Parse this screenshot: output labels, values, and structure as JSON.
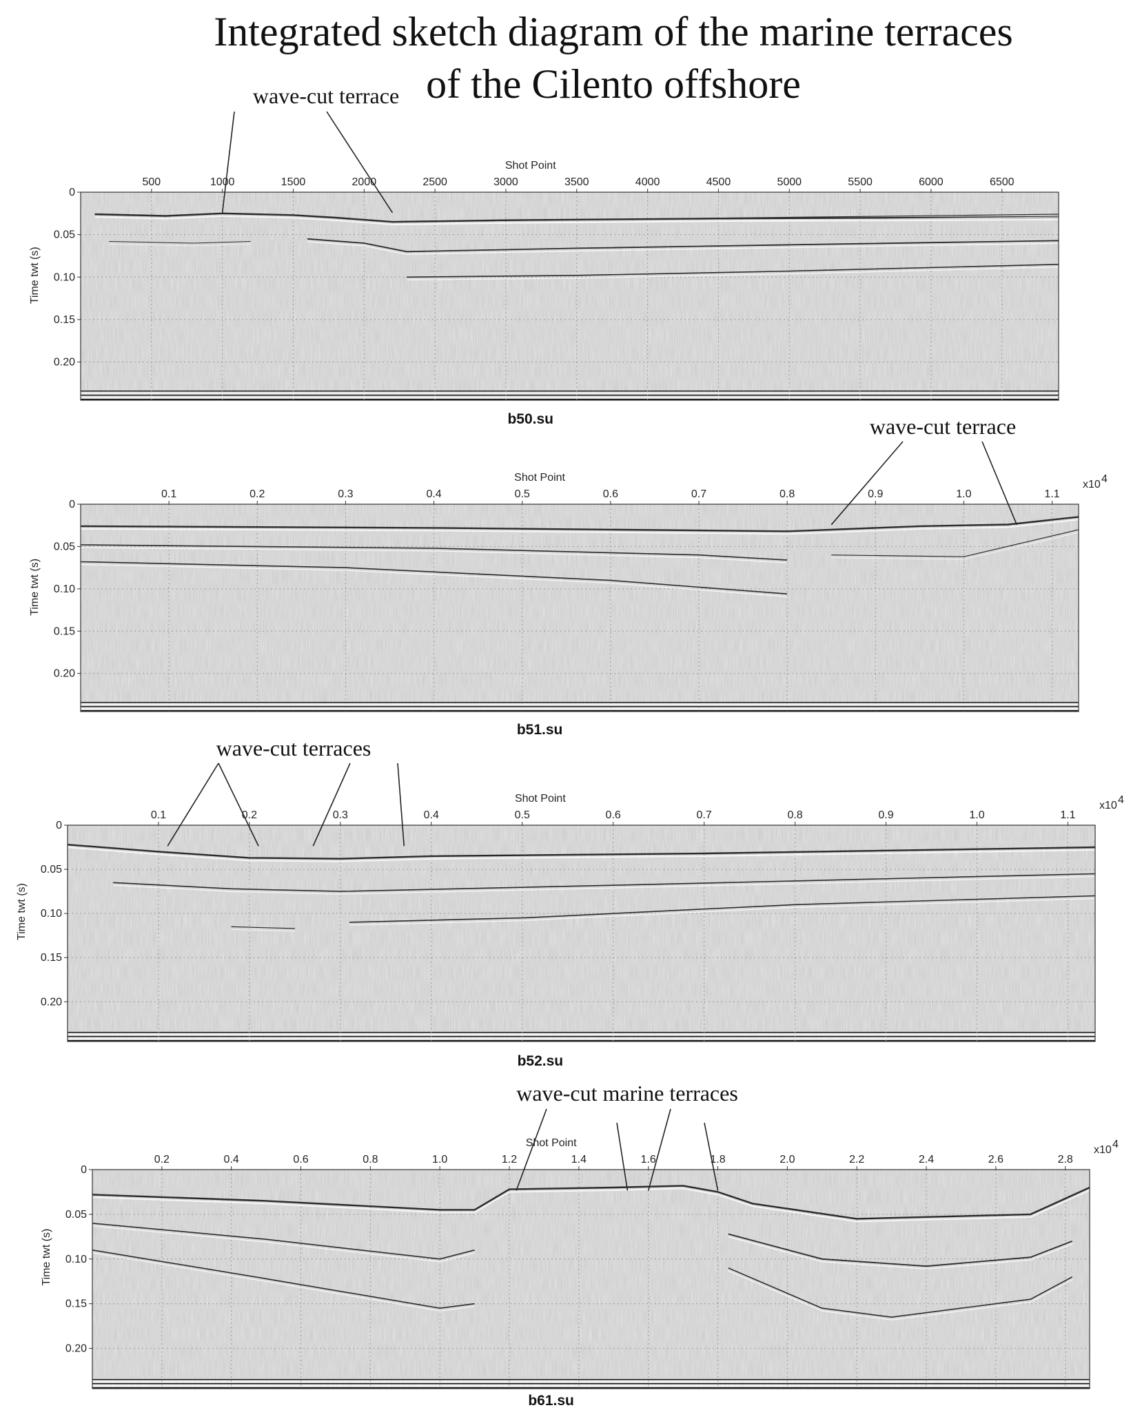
{
  "figure": {
    "title_line1": "Integrated sketch diagram of the marine terraces",
    "title_line2": "of the Cilento offshore"
  },
  "panels": [
    {
      "id": "b50",
      "label": "b50.su",
      "xlabel": "Shot Point",
      "ylabel": "Time twt (s)",
      "multiplier": "",
      "xlim": [
        0,
        6900
      ],
      "xticks": [
        "500",
        "1000",
        "1500",
        "2000",
        "2500",
        "3000",
        "3500",
        "4000",
        "4500",
        "5000",
        "5500",
        "6000",
        "6500"
      ],
      "xtick_values": [
        500,
        1000,
        1500,
        2000,
        2500,
        3000,
        3500,
        4000,
        4500,
        5000,
        5500,
        6000,
        6500
      ],
      "ylim": [
        0,
        0.245
      ],
      "yticks": [
        "0",
        "0.05",
        "0.10",
        "0.15",
        "0.20"
      ],
      "ytick_values": [
        0,
        0.05,
        0.1,
        0.15,
        0.2
      ],
      "annotation": {
        "text": "wave-cut terrace",
        "targets": [
          1000,
          2200
        ]
      },
      "reflectors": [
        {
          "points": [
            [
              100,
              0.026
            ],
            [
              600,
              0.028
            ],
            [
              1000,
              0.025
            ],
            [
              1500,
              0.027
            ],
            [
              1800,
              0.03
            ],
            [
              2200,
              0.035
            ],
            [
              3000,
              0.033
            ],
            [
              4500,
              0.031
            ],
            [
              6000,
              0.03
            ],
            [
              6900,
              0.029
            ]
          ],
          "w": 2.4
        },
        {
          "points": [
            [
              2200,
              0.035
            ],
            [
              6900,
              0.026
            ]
          ],
          "w": 1.2
        },
        {
          "points": [
            [
              1600,
              0.055
            ],
            [
              2000,
              0.06
            ],
            [
              2300,
              0.07
            ],
            [
              3500,
              0.066
            ],
            [
              5000,
              0.062
            ],
            [
              6900,
              0.057
            ]
          ],
          "w": 1.8
        },
        {
          "points": [
            [
              2300,
              0.1
            ],
            [
              3500,
              0.098
            ],
            [
              5000,
              0.093
            ],
            [
              6900,
              0.085
            ]
          ],
          "w": 1.6
        },
        {
          "points": [
            [
              200,
              0.058
            ],
            [
              800,
              0.06
            ],
            [
              1200,
              0.058
            ]
          ],
          "w": 1.0
        }
      ]
    },
    {
      "id": "b51",
      "label": "b51.su",
      "xlabel": "Shot Point",
      "ylabel": "Time twt (s)",
      "multiplier": "x10",
      "multiplier_exp": "4",
      "xlim": [
        0,
        1.13
      ],
      "xticks": [
        "0.1",
        "0.2",
        "0.3",
        "0.4",
        "0.5",
        "0.6",
        "0.7",
        "0.8",
        "0.9",
        "1.0",
        "1.1"
      ],
      "xtick_values": [
        0.1,
        0.2,
        0.3,
        0.4,
        0.5,
        0.6,
        0.7,
        0.8,
        0.9,
        1.0,
        1.1
      ],
      "ylim": [
        0,
        0.245
      ],
      "yticks": [
        "0",
        "0.05",
        "0.10",
        "0.15",
        "0.20"
      ],
      "ytick_values": [
        0,
        0.05,
        0.1,
        0.15,
        0.2
      ],
      "annotation": {
        "text": "wave-cut terrace",
        "targets": [
          0.85,
          1.06
        ]
      },
      "reflectors": [
        {
          "points": [
            [
              0.0,
              0.026
            ],
            [
              0.4,
              0.028
            ],
            [
              0.8,
              0.032
            ],
            [
              0.85,
              0.03
            ],
            [
              0.95,
              0.026
            ],
            [
              1.05,
              0.024
            ],
            [
              1.13,
              0.015
            ]
          ],
          "w": 2.4
        },
        {
          "points": [
            [
              0.0,
              0.048
            ],
            [
              0.4,
              0.052
            ],
            [
              0.7,
              0.06
            ],
            [
              0.8,
              0.066
            ]
          ],
          "w": 1.6
        },
        {
          "points": [
            [
              0.0,
              0.068
            ],
            [
              0.3,
              0.075
            ],
            [
              0.6,
              0.09
            ],
            [
              0.8,
              0.106
            ]
          ],
          "w": 1.6
        },
        {
          "points": [
            [
              0.85,
              0.06
            ],
            [
              1.0,
              0.062
            ],
            [
              1.13,
              0.03
            ]
          ],
          "w": 1.2
        }
      ]
    },
    {
      "id": "b52",
      "label": "b52.su",
      "xlabel": "Shot Point",
      "ylabel": "Time twt (s)",
      "multiplier": "x10",
      "multiplier_exp": "4",
      "xlim": [
        0,
        1.13
      ],
      "xticks": [
        "0.1",
        "0.2",
        "0.3",
        "0.4",
        "0.5",
        "0.6",
        "0.7",
        "0.8",
        "0.9",
        "1.0",
        "1.1"
      ],
      "xtick_values": [
        0.1,
        0.2,
        0.3,
        0.4,
        0.5,
        0.6,
        0.7,
        0.8,
        0.9,
        1.0,
        1.1
      ],
      "ylim": [
        0,
        0.245
      ],
      "yticks": [
        "0",
        "0.05",
        "0.10",
        "0.15",
        "0.20"
      ],
      "ytick_values": [
        0,
        0.05,
        0.1,
        0.15,
        0.2
      ],
      "annotation": {
        "text": "wave-cut terraces",
        "targets": [
          0.11,
          0.21,
          0.27,
          0.37
        ]
      },
      "reflectors": [
        {
          "points": [
            [
              0.0,
              0.022
            ],
            [
              0.1,
              0.03
            ],
            [
              0.2,
              0.037
            ],
            [
              0.3,
              0.038
            ],
            [
              0.4,
              0.035
            ],
            [
              0.7,
              0.032
            ],
            [
              1.13,
              0.025
            ]
          ],
          "w": 2.4
        },
        {
          "points": [
            [
              0.05,
              0.065
            ],
            [
              0.18,
              0.072
            ],
            [
              0.3,
              0.075
            ],
            [
              0.6,
              0.068
            ],
            [
              1.13,
              0.055
            ]
          ],
          "w": 1.6
        },
        {
          "points": [
            [
              0.31,
              0.11
            ],
            [
              0.5,
              0.105
            ],
            [
              0.8,
              0.09
            ],
            [
              1.13,
              0.08
            ]
          ],
          "w": 1.6
        },
        {
          "points": [
            [
              0.18,
              0.115
            ],
            [
              0.25,
              0.117
            ]
          ],
          "w": 1.2
        }
      ]
    },
    {
      "id": "b61",
      "label": "b61.su",
      "xlabel": "Shot Point",
      "ylabel": "Time twt (s)",
      "multiplier": "x10",
      "multiplier_exp": "4",
      "xlim": [
        0,
        2.87
      ],
      "xticks": [
        "0.2",
        "0.4",
        "0.6",
        "0.8",
        "1.0",
        "1.2",
        "1.4",
        "1.6",
        "1.8",
        "2.0",
        "2.2",
        "2.4",
        "2.6",
        "2.8"
      ],
      "xtick_values": [
        0.2,
        0.4,
        0.6,
        0.8,
        1.0,
        1.2,
        1.4,
        1.6,
        1.8,
        2.0,
        2.2,
        2.4,
        2.6,
        2.8
      ],
      "ylim": [
        0,
        0.245
      ],
      "yticks": [
        "0",
        "0.05",
        "0.10",
        "0.15",
        "0.20"
      ],
      "ytick_values": [
        0,
        0.05,
        0.1,
        0.15,
        0.2
      ],
      "annotation": {
        "text": "wave-cut marine terraces",
        "targets": [
          1.22,
          1.54,
          1.6,
          1.8
        ]
      },
      "reflectors": [
        {
          "points": [
            [
              0.0,
              0.028
            ],
            [
              0.5,
              0.035
            ],
            [
              1.0,
              0.045
            ],
            [
              1.1,
              0.045
            ],
            [
              1.2,
              0.022
            ],
            [
              1.5,
              0.02
            ],
            [
              1.7,
              0.018
            ],
            [
              1.8,
              0.025
            ],
            [
              1.9,
              0.038
            ],
            [
              2.2,
              0.055
            ],
            [
              2.7,
              0.05
            ],
            [
              2.87,
              0.02
            ]
          ],
          "w": 2.4
        },
        {
          "points": [
            [
              0.0,
              0.06
            ],
            [
              0.5,
              0.078
            ],
            [
              1.0,
              0.1
            ],
            [
              1.1,
              0.09
            ]
          ],
          "w": 1.6
        },
        {
          "points": [
            [
              0.0,
              0.09
            ],
            [
              0.5,
              0.122
            ],
            [
              1.0,
              0.155
            ],
            [
              1.1,
              0.15
            ]
          ],
          "w": 1.6
        },
        {
          "points": [
            [
              1.83,
              0.072
            ],
            [
              2.1,
              0.1
            ],
            [
              2.4,
              0.108
            ],
            [
              2.7,
              0.098
            ],
            [
              2.82,
              0.08
            ]
          ],
          "w": 1.8
        },
        {
          "points": [
            [
              1.83,
              0.11
            ],
            [
              2.1,
              0.155
            ],
            [
              2.3,
              0.165
            ],
            [
              2.7,
              0.145
            ],
            [
              2.82,
              0.12
            ]
          ],
          "w": 1.6
        }
      ]
    }
  ]
}
